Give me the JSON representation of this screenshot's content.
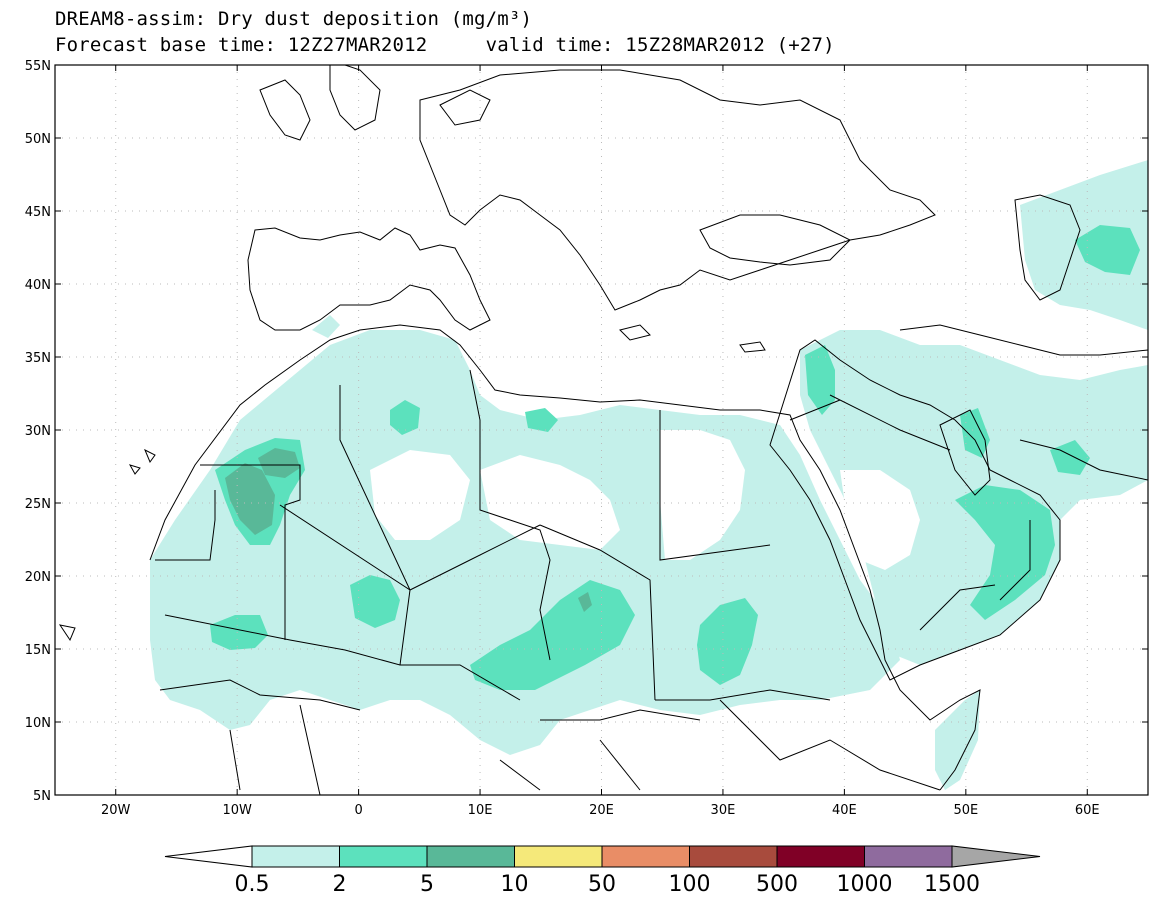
{
  "title": {
    "line1": "DREAM8-assim: Dry dust deposition (mg/m³)",
    "line2": "Forecast base time: 12Z27MAR2012     valid time: 15Z28MAR2012 (+27)"
  },
  "map": {
    "lat_labels": [
      "55N",
      "50N",
      "45N",
      "40N",
      "35N",
      "30N",
      "25N",
      "20N",
      "15N",
      "10N",
      "5N"
    ],
    "lon_labels": [
      "20W",
      "10W",
      "0",
      "10E",
      "20E",
      "30E",
      "40E",
      "50E",
      "60E"
    ],
    "lat_values": [
      55,
      50,
      45,
      40,
      35,
      30,
      25,
      20,
      15,
      10,
      5
    ],
    "lon_values": [
      -20,
      -10,
      0,
      10,
      20,
      30,
      40,
      50,
      60
    ],
    "extent": {
      "lon_min": -25,
      "lon_max": 65,
      "lat_min": 5,
      "lat_max": 55
    }
  },
  "colorbar": {
    "labels": [
      "0.5",
      "2",
      "5",
      "10",
      "50",
      "100",
      "500",
      "1000",
      "1500"
    ],
    "colors": [
      "#c4f0ea",
      "#5ce1bd",
      "#59b898",
      "#f5e97a",
      "#e98d66",
      "#a84b3d",
      "#800026",
      "#8f6b9e"
    ],
    "under_color": "#ffffff",
    "over_color": "#a6a6a6"
  },
  "levels_colors": {
    "light": "#c4f0ea",
    "mid": "#5ce1bd",
    "dark": "#59b898"
  }
}
